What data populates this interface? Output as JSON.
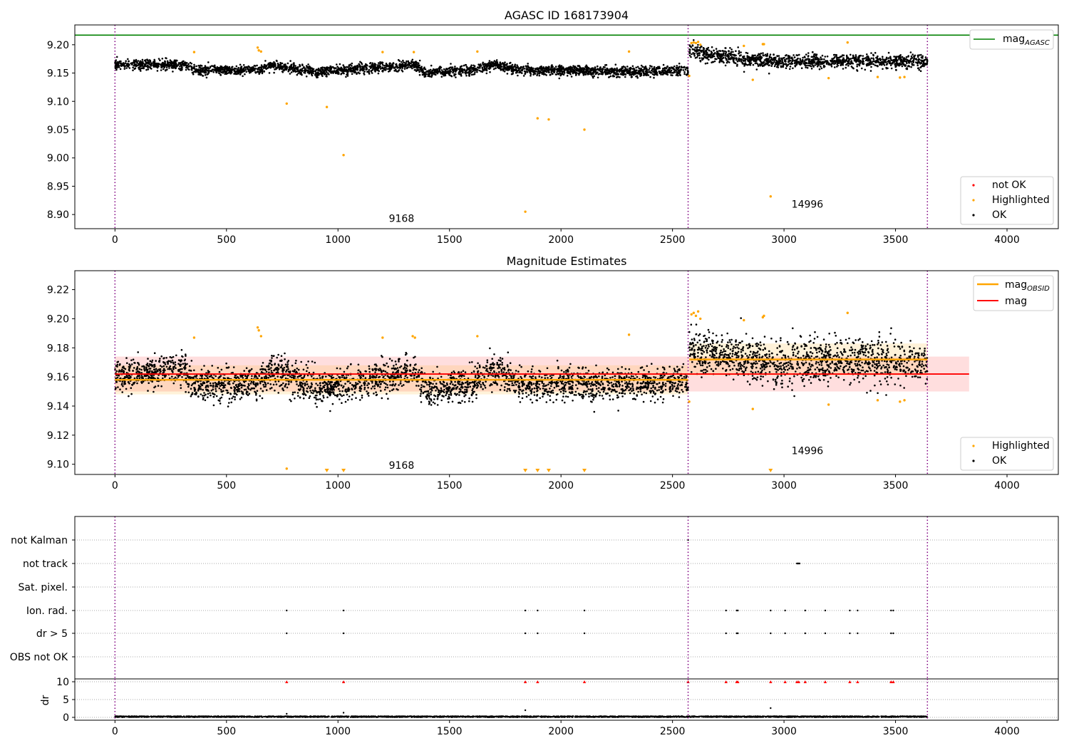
{
  "chart_data": [
    {
      "type": "scatter",
      "title": "AGASC ID 168173904",
      "xlim": [
        -180,
        4230
      ],
      "ylim": [
        8.875,
        9.235
      ],
      "xticks": [
        0,
        500,
        1000,
        1500,
        2000,
        2500,
        3000,
        3500,
        4000
      ],
      "yticks": [
        8.9,
        8.95,
        9.0,
        9.05,
        9.1,
        9.15,
        9.2
      ],
      "ytick_labels": [
        "8.90",
        "8.95",
        "9.00",
        "9.05",
        "9.10",
        "9.15",
        "9.20"
      ],
      "vlines": [
        0,
        2570,
        3643
      ],
      "vline_color": "#800080",
      "hline": {
        "name": "mag_AGASC",
        "y": 9.217,
        "color": "#008000"
      },
      "segments": [
        {
          "x_range": [
            0,
            2570
          ],
          "trend": [
            [
              0,
              9.165
            ],
            [
              300,
              9.165
            ],
            [
              360,
              9.155
            ],
            [
              640,
              9.155
            ],
            [
              700,
              9.163
            ],
            [
              900,
              9.152
            ],
            [
              1200,
              9.16
            ],
            [
              1340,
              9.165
            ],
            [
              1400,
              9.15
            ],
            [
              1600,
              9.155
            ],
            [
              1700,
              9.165
            ],
            [
              1800,
              9.155
            ],
            [
              2000,
              9.155
            ],
            [
              2300,
              9.152
            ],
            [
              2570,
              9.155
            ]
          ],
          "spread": 0.008
        },
        {
          "x_range": [
            2575,
            3643
          ],
          "trend": [
            [
              2575,
              9.188
            ],
            [
              2800,
              9.175
            ],
            [
              3000,
              9.17
            ],
            [
              3300,
              9.172
            ],
            [
              3643,
              9.17
            ]
          ],
          "spread": 0.011
        }
      ],
      "highlighted_points": [
        {
          "x": 355,
          "y": 9.187
        },
        {
          "x": 640,
          "y": 9.195
        },
        {
          "x": 645,
          "y": 9.19
        },
        {
          "x": 655,
          "y": 9.188
        },
        {
          "x": 770,
          "y": 9.096
        },
        {
          "x": 950,
          "y": 9.09
        },
        {
          "x": 1025,
          "y": 9.005
        },
        {
          "x": 1200,
          "y": 9.187
        },
        {
          "x": 1340,
          "y": 9.187
        },
        {
          "x": 1625,
          "y": 9.188
        },
        {
          "x": 1840,
          "y": 8.905
        },
        {
          "x": 1895,
          "y": 9.07
        },
        {
          "x": 1945,
          "y": 9.068
        },
        {
          "x": 2105,
          "y": 9.05
        },
        {
          "x": 2305,
          "y": 9.188
        },
        {
          "x": 2575,
          "y": 9.145
        },
        {
          "x": 2585,
          "y": 9.203
        },
        {
          "x": 2595,
          "y": 9.204
        },
        {
          "x": 2605,
          "y": 9.203
        },
        {
          "x": 2615,
          "y": 9.205
        },
        {
          "x": 2625,
          "y": 9.2
        },
        {
          "x": 2820,
          "y": 9.198
        },
        {
          "x": 2860,
          "y": 9.138
        },
        {
          "x": 2905,
          "y": 9.201
        },
        {
          "x": 2910,
          "y": 9.201
        },
        {
          "x": 2940,
          "y": 8.932
        },
        {
          "x": 3200,
          "y": 9.141
        },
        {
          "x": 3285,
          "y": 9.204
        },
        {
          "x": 3420,
          "y": 9.143
        },
        {
          "x": 3520,
          "y": 9.142
        },
        {
          "x": 3540,
          "y": 9.143
        }
      ],
      "annotations": [
        {
          "text": "9168",
          "x": 1285,
          "y": 8.887
        },
        {
          "text": "14996",
          "x": 3105,
          "y": 8.912
        }
      ],
      "legend": {
        "upper": {
          "position": "top-right",
          "entries": [
            "mag_AGASC"
          ]
        },
        "lower": {
          "position": "bottom-right",
          "entries": [
            "not OK",
            "Highlighted",
            "OK"
          ]
        }
      },
      "series_colors": {
        "ok": "#000000",
        "highlighted": "#ffa500",
        "not_ok": "#ff0000"
      }
    },
    {
      "type": "scatter",
      "title": "Magnitude Estimates",
      "xlim": [
        -180,
        4230
      ],
      "ylim": [
        9.093,
        9.233
      ],
      "xticks": [
        0,
        500,
        1000,
        1500,
        2000,
        2500,
        3000,
        3500,
        4000
      ],
      "yticks": [
        9.1,
        9.12,
        9.14,
        9.16,
        9.18,
        9.2,
        9.22
      ],
      "ytick_labels": [
        "9.10",
        "9.12",
        "9.14",
        "9.16",
        "9.18",
        "9.20",
        "9.22"
      ],
      "vlines": [
        0,
        2570,
        3643
      ],
      "mag": {
        "y": 9.162,
        "band": [
          9.15,
          9.174
        ],
        "x_range": [
          0,
          3830
        ],
        "color": "#ff0000"
      },
      "mag_obsid": [
        {
          "x_range": [
            0,
            2570
          ],
          "y": 9.158,
          "band": [
            9.148,
            9.168
          ]
        },
        {
          "x_range": [
            2575,
            3643
          ],
          "y": 9.172,
          "band": [
            9.161,
            9.183
          ]
        }
      ],
      "segments": [
        {
          "x_range": [
            0,
            2570
          ],
          "trend": [
            [
              0,
              9.16
            ],
            [
              300,
              9.165
            ],
            [
              360,
              9.155
            ],
            [
              640,
              9.155
            ],
            [
              700,
              9.165
            ],
            [
              900,
              9.152
            ],
            [
              1200,
              9.16
            ],
            [
              1340,
              9.165
            ],
            [
              1400,
              9.15
            ],
            [
              1600,
              9.155
            ],
            [
              1700,
              9.165
            ],
            [
              1800,
              9.155
            ],
            [
              2000,
              9.155
            ],
            [
              2300,
              9.155
            ],
            [
              2570,
              9.157
            ]
          ],
          "spread": 0.01
        },
        {
          "x_range": [
            2575,
            3643
          ],
          "trend": [
            [
              2575,
              9.18
            ],
            [
              2800,
              9.172
            ],
            [
              3000,
              9.17
            ],
            [
              3300,
              9.172
            ],
            [
              3643,
              9.17
            ]
          ],
          "spread": 0.013
        }
      ],
      "highlighted_points": [
        {
          "x": 355,
          "y": 9.187
        },
        {
          "x": 640,
          "y": 9.194
        },
        {
          "x": 645,
          "y": 9.192
        },
        {
          "x": 655,
          "y": 9.188
        },
        {
          "x": 770,
          "y": 9.097
        },
        {
          "x": 1200,
          "y": 9.187
        },
        {
          "x": 1335,
          "y": 9.188
        },
        {
          "x": 1345,
          "y": 9.187
        },
        {
          "x": 1625,
          "y": 9.188
        },
        {
          "x": 2305,
          "y": 9.189
        },
        {
          "x": 2575,
          "y": 9.143
        },
        {
          "x": 2585,
          "y": 9.203
        },
        {
          "x": 2595,
          "y": 9.204
        },
        {
          "x": 2605,
          "y": 9.202
        },
        {
          "x": 2615,
          "y": 9.205
        },
        {
          "x": 2625,
          "y": 9.2
        },
        {
          "x": 2820,
          "y": 9.199
        },
        {
          "x": 2860,
          "y": 9.138
        },
        {
          "x": 2905,
          "y": 9.201
        },
        {
          "x": 2910,
          "y": 9.202
        },
        {
          "x": 3200,
          "y": 9.141
        },
        {
          "x": 3285,
          "y": 9.204
        },
        {
          "x": 3420,
          "y": 9.144
        },
        {
          "x": 3520,
          "y": 9.143
        },
        {
          "x": 3540,
          "y": 9.144
        }
      ],
      "off_scale_markers": [
        950,
        1025,
        1840,
        1895,
        1945,
        2105,
        2940
      ],
      "annotations": [
        {
          "text": "9168",
          "x": 1285,
          "y": 9.097
        },
        {
          "text": "14996",
          "x": 3105,
          "y": 9.107
        }
      ],
      "legend": {
        "upper": {
          "position": "top-right",
          "entries": [
            "mag_OBSID",
            "mag"
          ]
        },
        "lower": {
          "position": "bottom-right",
          "entries": [
            "Highlighted",
            "OK"
          ]
        }
      }
    },
    {
      "type": "scatter",
      "title": "",
      "xlim": [
        -180,
        4230
      ],
      "categories": [
        "not Kalman",
        "not track",
        "Sat. pixel.",
        "Ion. rad.",
        "dr > 5",
        "OBS not OK"
      ],
      "vlines": [
        0,
        2570,
        3643
      ],
      "flag_points": {
        "not Kalman": [
          2570
        ],
        "not track": [
          3058,
          3062,
          3066,
          3070
        ],
        "Sat. pixel.": [],
        "Ion. rad.": [
          770,
          1025,
          1840,
          1895,
          2105,
          2740,
          2788,
          2793,
          2940,
          3005,
          3095,
          3185,
          3295,
          3330,
          3480,
          3490
        ],
        "dr > 5": [
          770,
          1025,
          1840,
          1895,
          2105,
          2740,
          2788,
          2793,
          2940,
          3005,
          3095,
          3185,
          3295,
          3330,
          3480,
          3490
        ],
        "OBS not OK": []
      }
    },
    {
      "type": "scatter",
      "title": "",
      "xlim": [
        -180,
        4230
      ],
      "ylim": [
        -0.8,
        10.8
      ],
      "xticks": [
        0,
        500,
        1000,
        1500,
        2000,
        2500,
        3000,
        3500,
        4000
      ],
      "yticks": [
        0,
        5,
        10
      ],
      "ytick_labels": [
        "0",
        "5",
        "10"
      ],
      "ylabel": "dr",
      "hline": {
        "y": 10.4,
        "color": "#000000"
      },
      "vlines": [
        0,
        2570,
        3643
      ],
      "dr_baseline": [
        0.05,
        0.35
      ],
      "dr_spikes": [
        {
          "x": 770,
          "y": 1.0
        },
        {
          "x": 1025,
          "y": 1.3
        },
        {
          "x": 1840,
          "y": 2.0
        },
        {
          "x": 2940,
          "y": 2.6
        }
      ],
      "clipped_markers": [
        770,
        1025,
        1840,
        1895,
        2105,
        2570,
        2740,
        2788,
        2793,
        2940,
        3005,
        3058,
        3066,
        3095,
        3185,
        3295,
        3330,
        3480,
        3490
      ]
    }
  ]
}
